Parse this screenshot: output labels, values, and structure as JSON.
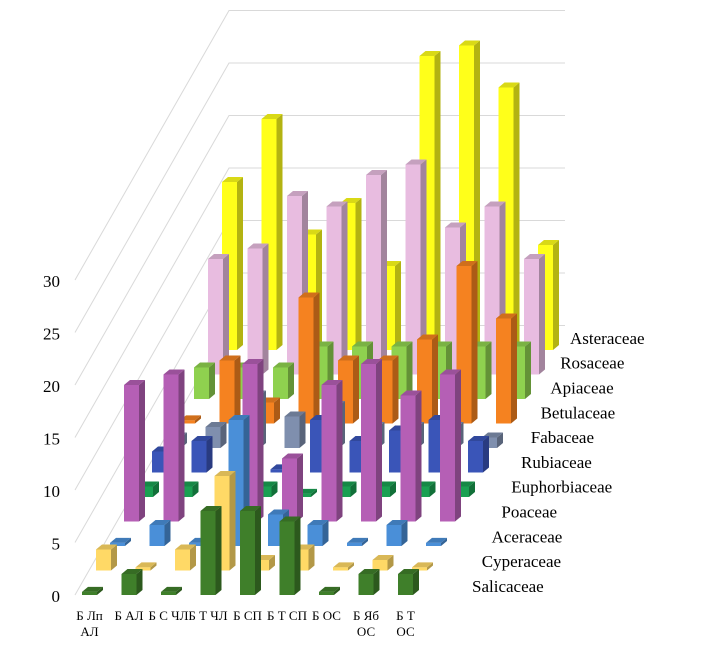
{
  "chart_data": {
    "type": "bar3d",
    "categories": [
      "Б Лп АЛ",
      "Б АЛ",
      "Б С ЧЛ",
      "Б Т ЧЛ",
      "Б СП",
      "Б Т СП",
      "Б ОС",
      "Б Яб ОС",
      "Б Т ОС"
    ],
    "series": [
      {
        "name": "Salicaceae",
        "color": "#3f7f2a",
        "values": [
          0.3,
          2,
          0.3,
          8,
          8,
          7,
          0.3,
          2,
          2
        ]
      },
      {
        "name": "Cyperaceae",
        "color": "#ffd966",
        "values": [
          2,
          0.3,
          2,
          9,
          1,
          2,
          0.3,
          1,
          0.3
        ]
      },
      {
        "name": "Aceraceae",
        "color": "#4a8fd8",
        "values": [
          0.3,
          2,
          0.3,
          12,
          3,
          2,
          0.3,
          2,
          0.3
        ]
      },
      {
        "name": "Poaceae",
        "color": "#b55fb5",
        "values": [
          13,
          14,
          0.3,
          15,
          6,
          13,
          15,
          12,
          14
        ]
      },
      {
        "name": "Euphorbiaceae",
        "color": "#1aa052",
        "values": [
          1,
          1,
          1,
          1,
          0.3,
          1,
          1,
          1,
          1
        ]
      },
      {
        "name": "Rubiaceae",
        "color": "#3a55b8",
        "values": [
          2,
          3,
          2,
          0.3,
          5,
          3,
          4,
          5,
          3
        ]
      },
      {
        "name": "Fabaceae",
        "color": "#7f8fae",
        "values": [
          1,
          2,
          5,
          3,
          4,
          2,
          2,
          2,
          1
        ]
      },
      {
        "name": "Betulaceae",
        "color": "#f58220",
        "values": [
          0.3,
          6,
          2,
          12,
          6,
          6,
          8,
          15,
          10
        ]
      },
      {
        "name": "Apiaceae",
        "color": "#8fd14f",
        "values": [
          3,
          3,
          3,
          5,
          5,
          5,
          5,
          5,
          5
        ]
      },
      {
        "name": "Rosaceae",
        "color": "#e8bce0",
        "values": [
          11,
          12,
          17,
          16,
          19,
          20,
          14,
          16,
          11
        ]
      },
      {
        "name": "Asteraceae",
        "color": "#ffff1a",
        "values": [
          16,
          22,
          11,
          14,
          8,
          28,
          29,
          25,
          10
        ]
      }
    ],
    "ylim": [
      0,
      30
    ],
    "yticks": [
      0,
      5,
      10,
      15,
      20,
      25,
      30
    ],
    "grid": true
  }
}
